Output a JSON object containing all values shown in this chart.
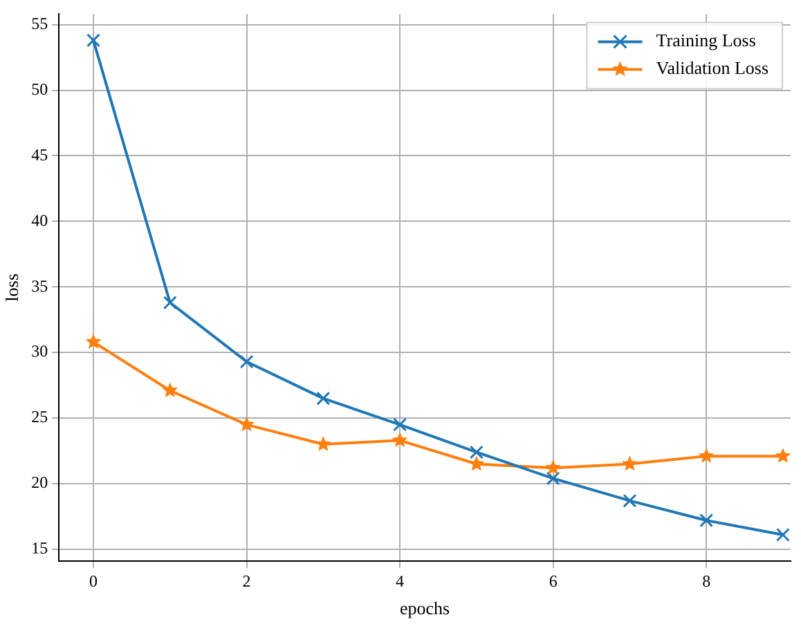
{
  "chart_data": {
    "type": "line",
    "xlabel": "epochs",
    "ylabel": "loss",
    "x": [
      0,
      1,
      2,
      3,
      4,
      5,
      6,
      7,
      8,
      9
    ],
    "series": [
      {
        "name": "Training Loss",
        "color": "#1f77b4",
        "marker": "cross",
        "values": [
          53.8,
          33.8,
          29.3,
          26.5,
          24.5,
          22.4,
          20.4,
          18.7,
          17.2,
          16.1
        ]
      },
      {
        "name": "Validation Loss",
        "color": "#ff7f0e",
        "marker": "star",
        "values": [
          30.8,
          27.1,
          24.5,
          23.0,
          23.3,
          21.5,
          21.2,
          21.5,
          22.1,
          22.1
        ]
      }
    ],
    "xlim": [
      -0.45,
      9.1
    ],
    "xticks": [
      0,
      2,
      4,
      6,
      8
    ],
    "ylim": [
      14.1,
      55.8
    ],
    "yticks": [
      15,
      20,
      25,
      30,
      35,
      40,
      45,
      50,
      55
    ],
    "grid": true,
    "legend": "top right",
    "line_style": "solid"
  }
}
